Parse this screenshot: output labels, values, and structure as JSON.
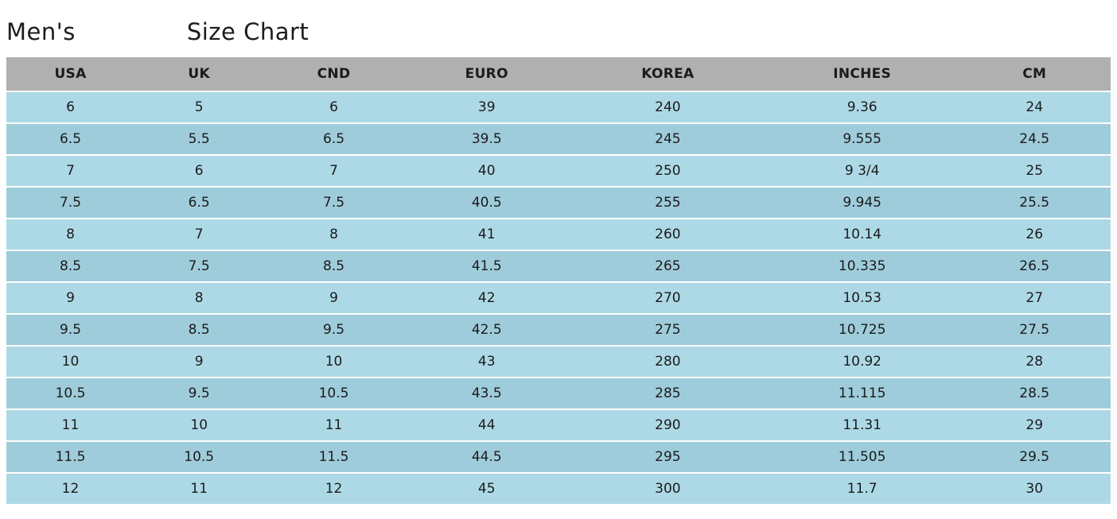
{
  "page": {
    "title_prefix": "Men's",
    "title_suffix": "Size Chart"
  },
  "colors": {
    "header_bg": "#b0b0b0",
    "row_light": "#add9e6",
    "row_dark": "#9fccdb",
    "text": "#1b1b1b"
  },
  "chart_data": {
    "type": "table",
    "title": "Men's Size Chart",
    "columns": [
      "USA",
      "UK",
      "CND",
      "EURO",
      "KOREA",
      "INCHES",
      "CM"
    ],
    "rows": [
      [
        "6",
        "5",
        "6",
        "39",
        "240",
        "9.36",
        "24"
      ],
      [
        "6.5",
        "5.5",
        "6.5",
        "39.5",
        "245",
        "9.555",
        "24.5"
      ],
      [
        "7",
        "6",
        "7",
        "40",
        "250",
        "9 3/4",
        "25"
      ],
      [
        "7.5",
        "6.5",
        "7.5",
        "40.5",
        "255",
        "9.945",
        "25.5"
      ],
      [
        "8",
        "7",
        "8",
        "41",
        "260",
        "10.14",
        "26"
      ],
      [
        "8.5",
        "7.5",
        "8.5",
        "41.5",
        "265",
        "10.335",
        "26.5"
      ],
      [
        "9",
        "8",
        "9",
        "42",
        "270",
        "10.53",
        "27"
      ],
      [
        "9.5",
        "8.5",
        "9.5",
        "42.5",
        "275",
        "10.725",
        "27.5"
      ],
      [
        "10",
        "9",
        "10",
        "43",
        "280",
        "10.92",
        "28"
      ],
      [
        "10.5",
        "9.5",
        "10.5",
        "43.5",
        "285",
        "11.115",
        "28.5"
      ],
      [
        "11",
        "10",
        "11",
        "44",
        "290",
        "11.31",
        "29"
      ],
      [
        "11.5",
        "10.5",
        "11.5",
        "44.5",
        "295",
        "11.505",
        "29.5"
      ],
      [
        "12",
        "11",
        "12",
        "45",
        "300",
        "11.7",
        "30"
      ]
    ],
    "layout": {
      "header_background": "#b0b0b0",
      "row_striping": [
        "#add9e6",
        "#9fccdb"
      ],
      "grid": "horizontal-only"
    }
  }
}
